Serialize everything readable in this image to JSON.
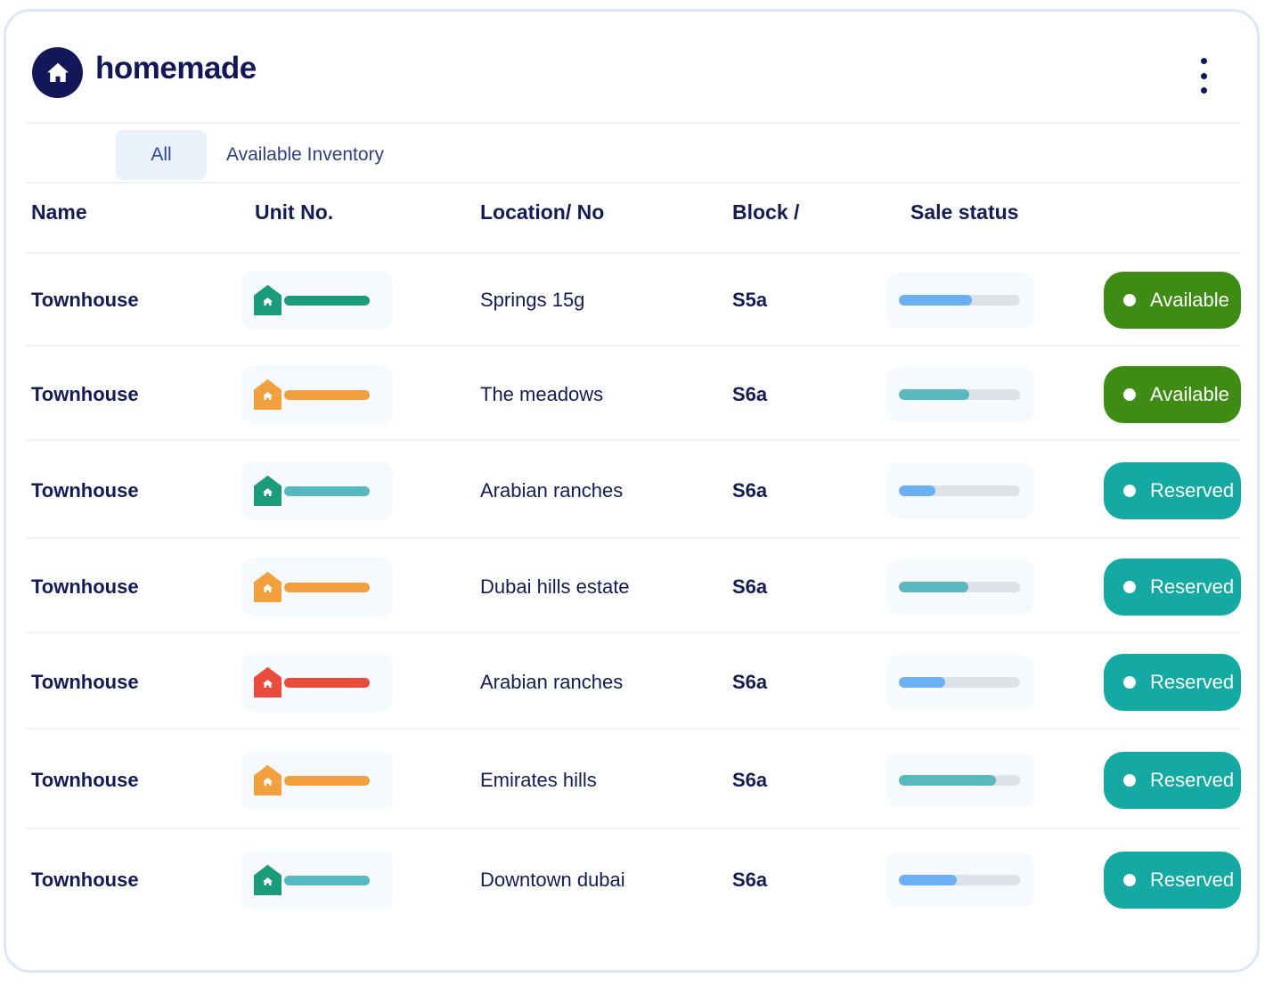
{
  "app": {
    "brand": "homemade",
    "logo_icon": "home-icon",
    "menu_icon": "kebab-menu-icon"
  },
  "tabs": [
    {
      "label": "All",
      "active": true
    },
    {
      "label": "Available Inventory",
      "active": false
    }
  ],
  "table": {
    "columns": {
      "name": "Name",
      "unit": "Unit No.",
      "location": "Location/ No",
      "block": "Block /",
      "sale": "Sale status"
    },
    "rows": [
      {
        "name": "Townhouse",
        "unit_color": "#1a9b7c",
        "location": "Springs 15g",
        "block": "S5a",
        "sale_progress": 0.6,
        "sale_color": "#6ab0f2",
        "status": "Available",
        "status_color": "#3f8c14"
      },
      {
        "name": "Townhouse",
        "unit_color": "#f2a03e",
        "location": "The meadows",
        "block": "S6a",
        "sale_progress": 0.58,
        "sale_color": "#5ab8bf",
        "status": "Available",
        "status_color": "#3f8c14"
      },
      {
        "name": "Townhouse",
        "unit_color": "#1a9b7c",
        "location": "Arabian ranches",
        "block": "S6a",
        "sale_progress": 0.3,
        "sale_color": "#6ab0f2",
        "status": "Reserved",
        "status_color": "#14aaa3"
      },
      {
        "name": "Townhouse",
        "unit_color": "#f2a03e",
        "location": "Dubai hills estate",
        "block": "S6a",
        "sale_progress": 0.57,
        "sale_color": "#5ab8bf",
        "status": "Reserved",
        "status_color": "#14aaa3"
      },
      {
        "name": "Townhouse",
        "unit_color": "#ea4b3a",
        "location": "Arabian ranches",
        "block": "S6a",
        "sale_progress": 0.38,
        "sale_color": "#6ab0f2",
        "status": "Reserved",
        "status_color": "#14aaa3"
      },
      {
        "name": "Townhouse",
        "unit_color": "#f2a03e",
        "location": "Emirates hills",
        "block": "S6a",
        "sale_progress": 0.8,
        "sale_color": "#5ab8bf",
        "status": "Reserved",
        "status_color": "#14aaa3"
      },
      {
        "name": "Townhouse",
        "unit_color": "#1a9b7c",
        "location": "Downtown dubai",
        "block": "S6a",
        "sale_progress": 0.48,
        "sale_color": "#6ab0f2",
        "status": "Reserved",
        "status_color": "#14aaa3"
      }
    ]
  },
  "unit_bar_colors_secondary": {
    "#1a9b7c": "#56b9c1"
  },
  "unit_bar_colors": [
    "#1a9b7c",
    "#f2a03e",
    "#56b9c1",
    "#f2a03e",
    "#ea4b3a",
    "#f2a03e",
    "#56b9c1"
  ]
}
